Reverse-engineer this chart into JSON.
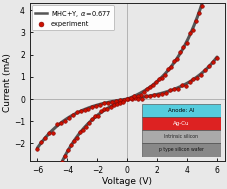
{
  "title": "",
  "xlabel": "Voltage (V)",
  "ylabel": "Current (mA)",
  "xlim": [
    -6.5,
    6.5
  ],
  "ylim": [
    -2.8,
    4.3
  ],
  "xticks": [
    -6,
    -4,
    -2,
    0,
    2,
    4,
    6
  ],
  "yticks": [
    -2,
    -1,
    0,
    1,
    2,
    3,
    4
  ],
  "line_color": "#555555",
  "line_width": 2.2,
  "dot_facecolor": "#cc1100",
  "dot_edgecolor": "#880000",
  "legend_label_line": "MHC+Y, α = 0.677",
  "legend_label_dots": "experiment",
  "bg_color": "#e8e8e8",
  "plot_bg": "#e8e8e8",
  "inset_layers": [
    {
      "label": "Anode: Al",
      "color": "#55ccdd",
      "text_color": "#000000"
    },
    {
      "label": "Ag-Cu",
      "color": "#dd2222",
      "text_color": "#ffffff"
    },
    {
      "label": "Intrinsic silicon",
      "color": "#aaaaaa",
      "text_color": "#222222"
    },
    {
      "label": "p type silicon wafer",
      "color": "#888888",
      "text_color": "#111111"
    }
  ]
}
